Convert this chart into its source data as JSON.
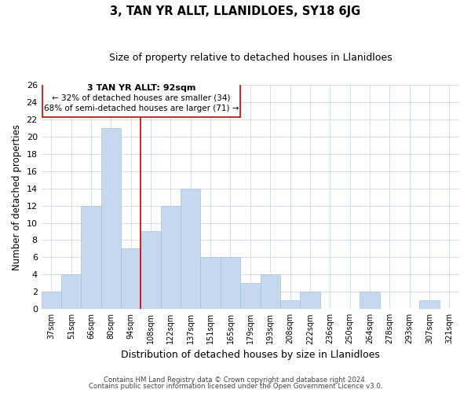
{
  "title": "3, TAN YR ALLT, LLANIDLOES, SY18 6JG",
  "subtitle": "Size of property relative to detached houses in Llanidloes",
  "xlabel": "Distribution of detached houses by size in Llanidloes",
  "ylabel": "Number of detached properties",
  "bar_labels": [
    "37sqm",
    "51sqm",
    "66sqm",
    "80sqm",
    "94sqm",
    "108sqm",
    "122sqm",
    "137sqm",
    "151sqm",
    "165sqm",
    "179sqm",
    "193sqm",
    "208sqm",
    "222sqm",
    "236sqm",
    "250sqm",
    "264sqm",
    "278sqm",
    "293sqm",
    "307sqm",
    "321sqm"
  ],
  "bar_values": [
    2,
    4,
    12,
    21,
    7,
    9,
    12,
    14,
    6,
    6,
    3,
    4,
    1,
    2,
    0,
    0,
    2,
    0,
    0,
    1,
    0
  ],
  "bar_color": "#c5d8ed",
  "bar_edgecolor": "#a8c0db",
  "marker_index": 4,
  "marker_color": "#cc0000",
  "ylim": [
    0,
    26
  ],
  "yticks": [
    0,
    2,
    4,
    6,
    8,
    10,
    12,
    14,
    16,
    18,
    20,
    22,
    24,
    26
  ],
  "annotation_title": "3 TAN YR ALLT: 92sqm",
  "annotation_line1": "← 32% of detached houses are smaller (34)",
  "annotation_line2": "68% of semi-detached houses are larger (71) →",
  "footer1": "Contains HM Land Registry data © Crown copyright and database right 2024.",
  "footer2": "Contains public sector information licensed under the Open Government Licence v3.0."
}
